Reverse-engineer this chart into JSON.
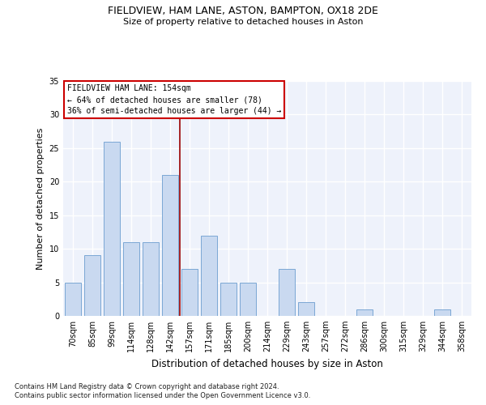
{
  "title1": "FIELDVIEW, HAM LANE, ASTON, BAMPTON, OX18 2DE",
  "title2": "Size of property relative to detached houses in Aston",
  "xlabel": "Distribution of detached houses by size in Aston",
  "ylabel": "Number of detached properties",
  "categories": [
    "70sqm",
    "85sqm",
    "99sqm",
    "114sqm",
    "128sqm",
    "142sqm",
    "157sqm",
    "171sqm",
    "185sqm",
    "200sqm",
    "214sqm",
    "229sqm",
    "243sqm",
    "257sqm",
    "272sqm",
    "286sqm",
    "300sqm",
    "315sqm",
    "329sqm",
    "344sqm",
    "358sqm"
  ],
  "values": [
    5,
    9,
    26,
    11,
    11,
    21,
    7,
    12,
    5,
    5,
    0,
    7,
    2,
    0,
    0,
    1,
    0,
    0,
    0,
    1,
    0
  ],
  "bar_color": "#c9d9f0",
  "bar_edge_color": "#7ba7d4",
  "property_label": "FIELDVIEW HAM LANE: 154sqm",
  "annotation_line1": "← 64% of detached houses are smaller (78)",
  "annotation_line2": "36% of semi-detached houses are larger (44) →",
  "vline_x_index": 6,
  "vline_color": "#990000",
  "ylim": [
    0,
    35
  ],
  "yticks": [
    0,
    5,
    10,
    15,
    20,
    25,
    30,
    35
  ],
  "background_color": "#eef2fb",
  "grid_color": "#ffffff",
  "footnote1": "Contains HM Land Registry data © Crown copyright and database right 2024.",
  "footnote2": "Contains public sector information licensed under the Open Government Licence v3.0."
}
